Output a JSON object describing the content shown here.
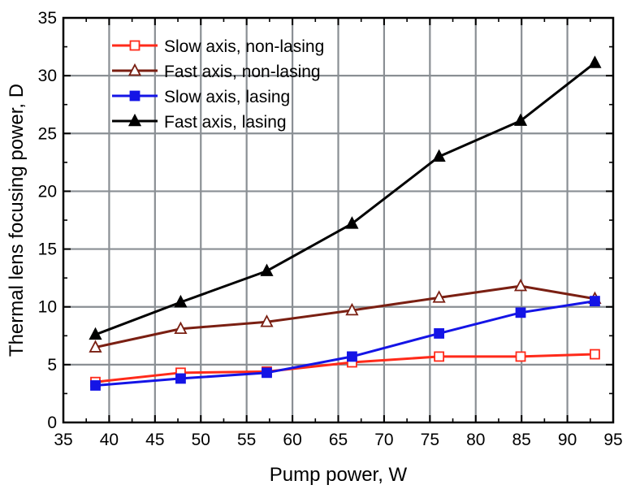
{
  "chart_data": {
    "type": "line",
    "xlabel": "Pump power, W",
    "ylabel": "Thermal lens focusing power, D",
    "xlim": [
      35,
      95
    ],
    "ylim": [
      0,
      35
    ],
    "xticks": [
      35,
      40,
      45,
      50,
      55,
      60,
      65,
      70,
      75,
      80,
      85,
      90,
      95
    ],
    "yticks": [
      0,
      5,
      10,
      15,
      20,
      25,
      30,
      35
    ],
    "grid": true,
    "legend": "top-left",
    "series": [
      {
        "name": "Slow axis, non-lasing",
        "color": "#ff2a1a",
        "marker": "square-open",
        "points": [
          [
            38.5,
            3.5
          ],
          [
            47.8,
            4.3
          ],
          [
            57.2,
            4.4
          ],
          [
            66.5,
            5.2
          ],
          [
            76.0,
            5.7
          ],
          [
            84.9,
            5.7
          ],
          [
            93.0,
            5.9
          ]
        ]
      },
      {
        "name": "Fast axis, non-lasing",
        "color": "#7a1f12",
        "marker": "triangle-open",
        "points": [
          [
            38.5,
            6.5
          ],
          [
            47.8,
            8.1
          ],
          [
            57.2,
            8.7
          ],
          [
            66.5,
            9.7
          ],
          [
            76.0,
            10.8
          ],
          [
            84.9,
            11.8
          ],
          [
            93.0,
            10.7
          ]
        ]
      },
      {
        "name": "Slow axis, lasing",
        "color": "#1414e6",
        "marker": "square-filled",
        "points": [
          [
            38.5,
            3.2
          ],
          [
            47.8,
            3.8
          ],
          [
            57.2,
            4.3
          ],
          [
            66.5,
            5.7
          ],
          [
            76.0,
            7.7
          ],
          [
            84.9,
            9.5
          ],
          [
            93.0,
            10.5
          ]
        ]
      },
      {
        "name": "Fast axis, lasing",
        "color": "#000000",
        "marker": "triangle-filled",
        "points": [
          [
            38.5,
            7.6
          ],
          [
            47.8,
            10.4
          ],
          [
            57.2,
            13.1
          ],
          [
            66.5,
            17.2
          ],
          [
            76.0,
            23.0
          ],
          [
            84.9,
            26.1
          ],
          [
            93.0,
            31.1
          ]
        ]
      }
    ]
  }
}
